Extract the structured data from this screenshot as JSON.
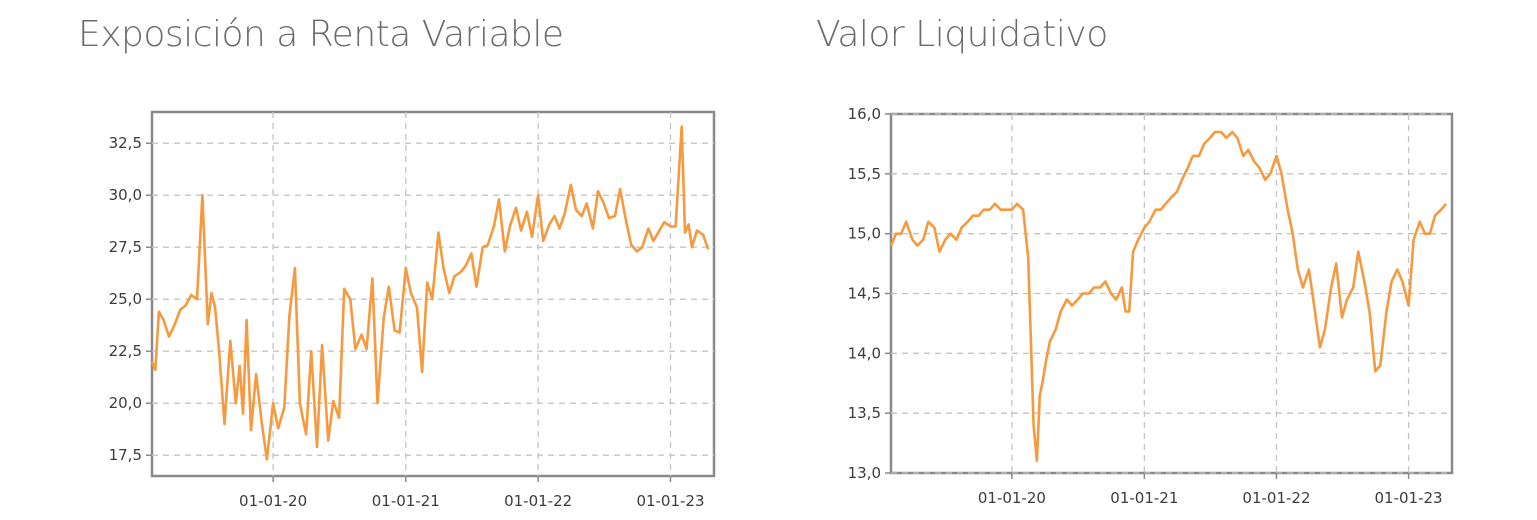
{
  "chart_data": [
    {
      "type": "line",
      "title": "Exposición a Renta Variable",
      "xlabel": "",
      "ylabel": "",
      "x_range": [
        "2019-02-01",
        "2023-05-01"
      ],
      "ylim": [
        16.5,
        34.0
      ],
      "y_ticks": [
        "17,5",
        "20,0",
        "22,5",
        "25,0",
        "27,5",
        "30,0",
        "32,5"
      ],
      "y_tick_values": [
        17.5,
        20.0,
        22.5,
        25.0,
        27.5,
        30.0,
        32.5
      ],
      "x_ticks": [
        "01-01-20",
        "01-01-21",
        "01-01-22",
        "01-01-23"
      ],
      "x_tick_dates": [
        "2020-01-01",
        "2021-01-01",
        "2022-01-01",
        "2023-01-01"
      ],
      "grid": true,
      "color": "#f6993f",
      "series": [
        {
          "x": [
            "2019-02-01",
            "2019-02-10",
            "2019-02-20",
            "2019-03-05",
            "2019-03-20",
            "2019-04-05",
            "2019-04-20",
            "2019-05-05",
            "2019-05-20",
            "2019-06-05",
            "2019-06-20",
            "2019-07-05",
            "2019-07-15",
            "2019-07-25",
            "2019-08-05",
            "2019-08-20",
            "2019-09-05",
            "2019-09-20",
            "2019-10-01",
            "2019-10-10",
            "2019-10-20",
            "2019-11-01",
            "2019-11-15",
            "2019-12-01",
            "2019-12-15",
            "2020-01-01",
            "2020-01-15",
            "2020-02-01",
            "2020-02-15",
            "2020-03-01",
            "2020-03-15",
            "2020-04-01",
            "2020-04-15",
            "2020-05-01",
            "2020-05-15",
            "2020-06-01",
            "2020-06-15",
            "2020-07-01",
            "2020-07-15",
            "2020-08-01",
            "2020-08-15",
            "2020-09-01",
            "2020-09-15",
            "2020-10-01",
            "2020-10-15",
            "2020-11-01",
            "2020-11-15",
            "2020-12-01",
            "2020-12-15",
            "2021-01-01",
            "2021-01-15",
            "2021-02-01",
            "2021-02-15",
            "2021-03-01",
            "2021-03-15",
            "2021-04-01",
            "2021-04-15",
            "2021-05-01",
            "2021-05-15",
            "2021-06-01",
            "2021-06-15",
            "2021-07-01",
            "2021-07-15",
            "2021-08-01",
            "2021-08-15",
            "2021-09-01",
            "2021-09-15",
            "2021-10-01",
            "2021-10-15",
            "2021-11-01",
            "2021-11-15",
            "2021-12-01",
            "2021-12-15",
            "2022-01-01",
            "2022-01-15",
            "2022-02-01",
            "2022-02-15",
            "2022-03-01",
            "2022-03-15",
            "2022-04-01",
            "2022-04-15",
            "2022-05-01",
            "2022-05-15",
            "2022-06-01",
            "2022-06-15",
            "2022-07-01",
            "2022-07-15",
            "2022-08-01",
            "2022-08-15",
            "2022-09-01",
            "2022-09-15",
            "2022-10-01",
            "2022-10-15",
            "2022-11-01",
            "2022-11-15",
            "2022-12-01",
            "2022-12-15",
            "2023-01-01",
            "2023-01-15",
            "2023-02-01",
            "2023-02-10",
            "2023-02-20",
            "2023-03-01",
            "2023-03-15",
            "2023-04-01",
            "2023-04-15"
          ],
          "y": [
            22.0,
            21.6,
            24.4,
            24.0,
            23.2,
            23.8,
            24.5,
            24.7,
            25.2,
            25.0,
            30.0,
            23.8,
            25.3,
            24.6,
            22.5,
            19.0,
            23.0,
            20.0,
            21.8,
            19.5,
            24.0,
            18.7,
            21.4,
            19.0,
            17.3,
            20.0,
            18.8,
            19.8,
            24.2,
            26.5,
            20.0,
            18.5,
            22.5,
            17.9,
            22.8,
            18.2,
            20.1,
            19.3,
            25.5,
            25.0,
            22.6,
            23.3,
            22.6,
            26.0,
            20.0,
            24.1,
            25.6,
            23.5,
            23.4,
            26.5,
            25.3,
            24.6,
            21.5,
            25.8,
            25.0,
            28.2,
            26.5,
            25.3,
            26.1,
            26.3,
            26.6,
            27.2,
            25.6,
            27.5,
            27.6,
            28.5,
            29.8,
            27.3,
            28.5,
            29.4,
            28.3,
            29.2,
            28.0,
            30.0,
            27.8,
            28.6,
            29.0,
            28.4,
            29.1,
            30.5,
            29.3,
            29.0,
            29.6,
            28.4,
            30.2,
            29.6,
            28.9,
            29.0,
            30.3,
            28.7,
            27.6,
            27.3,
            27.5,
            28.4,
            27.8,
            28.3,
            28.7,
            28.5,
            28.5,
            33.3,
            28.2,
            28.6,
            27.5,
            28.3,
            28.1,
            27.4
          ]
        }
      ]
    },
    {
      "type": "line",
      "title": "Valor Liquidativo",
      "xlabel": "",
      "ylabel": "",
      "x_range": [
        "2019-02-01",
        "2023-05-01"
      ],
      "ylim": [
        13.0,
        16.0
      ],
      "y_ticks": [
        "13,0",
        "13,5",
        "14,0",
        "14,5",
        "15,0",
        "15,5",
        "16,0"
      ],
      "y_tick_values": [
        13.0,
        13.5,
        14.0,
        14.5,
        15.0,
        15.5,
        16.0
      ],
      "x_ticks": [
        "01-01-20",
        "01-01-21",
        "01-01-22",
        "01-01-23"
      ],
      "x_tick_dates": [
        "2020-01-01",
        "2021-01-01",
        "2022-01-01",
        "2023-01-01"
      ],
      "grid": true,
      "color": "#f6993f",
      "series": [
        {
          "x": [
            "2019-02-01",
            "2019-02-15",
            "2019-03-01",
            "2019-03-15",
            "2019-04-01",
            "2019-04-15",
            "2019-05-01",
            "2019-05-15",
            "2019-06-01",
            "2019-06-15",
            "2019-07-01",
            "2019-07-15",
            "2019-08-01",
            "2019-08-15",
            "2019-09-01",
            "2019-09-15",
            "2019-10-01",
            "2019-10-15",
            "2019-11-01",
            "2019-11-15",
            "2019-12-01",
            "2019-12-15",
            "2020-01-01",
            "2020-01-15",
            "2020-02-01",
            "2020-02-15",
            "2020-03-01",
            "2020-03-10",
            "2020-03-18",
            "2020-03-25",
            "2020-04-05",
            "2020-04-15",
            "2020-05-01",
            "2020-05-15",
            "2020-06-01",
            "2020-06-15",
            "2020-07-01",
            "2020-07-15",
            "2020-08-01",
            "2020-08-15",
            "2020-09-01",
            "2020-09-15",
            "2020-10-01",
            "2020-10-15",
            "2020-10-31",
            "2020-11-10",
            "2020-11-20",
            "2020-12-01",
            "2020-12-15",
            "2021-01-01",
            "2021-01-15",
            "2021-02-01",
            "2021-02-15",
            "2021-03-01",
            "2021-03-15",
            "2021-04-01",
            "2021-04-15",
            "2021-05-01",
            "2021-05-15",
            "2021-06-01",
            "2021-06-15",
            "2021-07-01",
            "2021-07-15",
            "2021-08-01",
            "2021-08-15",
            "2021-09-01",
            "2021-09-15",
            "2021-10-01",
            "2021-10-15",
            "2021-11-01",
            "2021-11-15",
            "2021-12-01",
            "2021-12-15",
            "2022-01-01",
            "2022-01-15",
            "2022-02-01",
            "2022-02-15",
            "2022-03-01",
            "2022-03-15",
            "2022-04-01",
            "2022-04-15",
            "2022-05-01",
            "2022-05-15",
            "2022-06-01",
            "2022-06-15",
            "2022-07-01",
            "2022-07-15",
            "2022-08-01",
            "2022-08-15",
            "2022-09-01",
            "2022-09-15",
            "2022-10-01",
            "2022-10-15",
            "2022-11-01",
            "2022-11-15",
            "2022-12-01",
            "2022-12-15",
            "2023-01-01",
            "2023-01-15",
            "2023-02-01",
            "2023-02-15",
            "2023-03-01",
            "2023-03-15",
            "2023-04-01",
            "2023-04-15"
          ],
          "y": [
            14.9,
            15.0,
            15.0,
            15.1,
            14.95,
            14.9,
            14.95,
            15.1,
            15.05,
            14.85,
            14.95,
            15.0,
            14.95,
            15.05,
            15.1,
            15.15,
            15.15,
            15.2,
            15.2,
            15.25,
            15.2,
            15.2,
            15.2,
            15.25,
            15.2,
            14.8,
            13.4,
            13.1,
            13.65,
            13.75,
            13.95,
            14.1,
            14.2,
            14.35,
            14.45,
            14.4,
            14.45,
            14.5,
            14.5,
            14.55,
            14.55,
            14.6,
            14.5,
            14.45,
            14.55,
            14.35,
            14.35,
            14.85,
            14.95,
            15.05,
            15.1,
            15.2,
            15.2,
            15.25,
            15.3,
            15.35,
            15.45,
            15.55,
            15.65,
            15.65,
            15.75,
            15.8,
            15.85,
            15.85,
            15.8,
            15.85,
            15.8,
            15.65,
            15.7,
            15.6,
            15.55,
            15.45,
            15.5,
            15.65,
            15.5,
            15.2,
            15.0,
            14.7,
            14.55,
            14.7,
            14.4,
            14.05,
            14.2,
            14.55,
            14.75,
            14.3,
            14.45,
            14.55,
            14.85,
            14.6,
            14.35,
            13.85,
            13.9,
            14.35,
            14.6,
            14.7,
            14.6,
            14.4,
            14.95,
            15.1,
            15.0,
            15.0,
            15.15,
            15.2,
            15.25
          ]
        }
      ]
    }
  ]
}
